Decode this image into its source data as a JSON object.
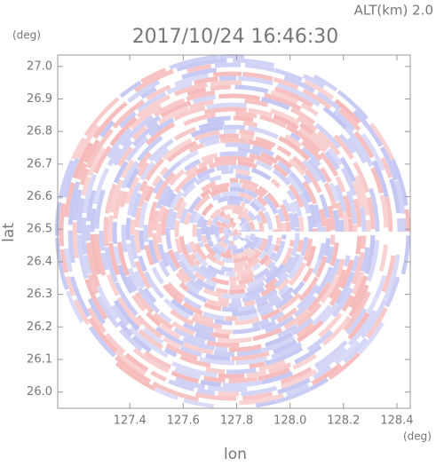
{
  "chart_data": {
    "type": "ppi",
    "title": "2017/10/24 16:46:30",
    "subtitle": "ALT(km) 2.0",
    "x_label": "lon",
    "y_label": "lat",
    "x_unit": "(deg)",
    "y_unit": "(deg)",
    "xlim": [
      127.13,
      128.45
    ],
    "ylim": [
      25.95,
      27.035
    ],
    "xticks": [
      127.4,
      127.6,
      127.8,
      {
        "value": 128.0,
        "label": "128.0"
      },
      128.2,
      128.4
    ],
    "yticks": [
      {
        "value": 26.0,
        "label": "26.0"
      },
      26.1,
      26.2,
      26.3,
      26.4,
      26.5,
      26.6,
      26.7,
      26.8,
      26.9,
      {
        "value": 27.0,
        "label": "27.0"
      }
    ],
    "colors": [
      "#f6b9b9",
      "#c3c6f3"
    ]
  }
}
